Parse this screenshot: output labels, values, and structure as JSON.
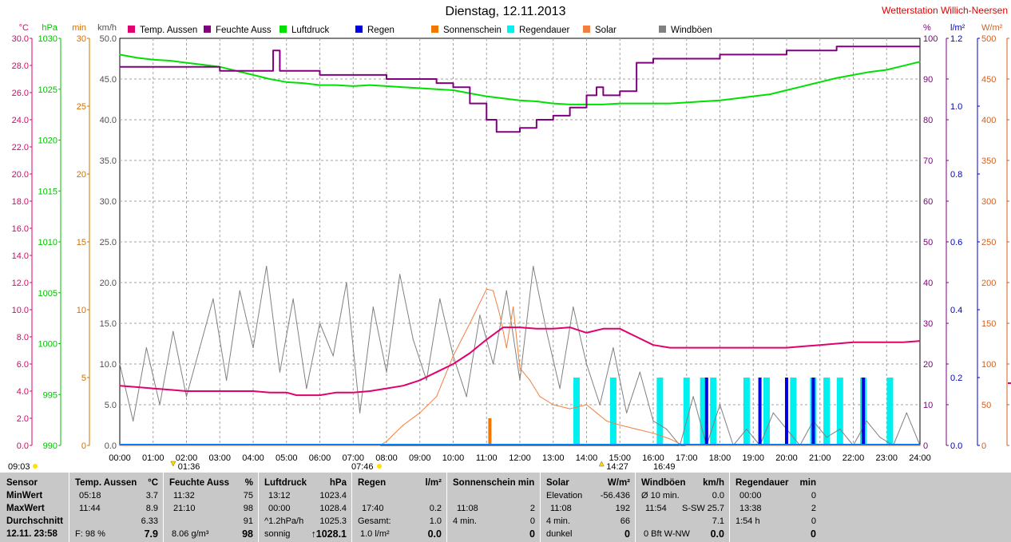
{
  "title": "Dienstag, 12.11.2013",
  "station": "Wetterstation Willich-Neersen",
  "colors": {
    "temp": "#e0006e",
    "humidity": "#800080",
    "pressure": "#00e000",
    "rain": "#0000e0",
    "sunshine": "#f07800",
    "raindur": "#00f0f0",
    "solar": "#f08040",
    "gust": "#808080"
  },
  "legend": [
    {
      "label": "Temp. Aussen",
      "color": "#e0006e"
    },
    {
      "label": "Feuchte Auss",
      "color": "#800080"
    },
    {
      "label": "Luftdruck",
      "color": "#00e000"
    },
    {
      "label": "Regen",
      "color": "#0000e0"
    },
    {
      "label": "Sonnenschein",
      "color": "#f07800"
    },
    {
      "label": "Regendauer",
      "color": "#00f0f0"
    },
    {
      "label": "Solar",
      "color": "#f08040"
    },
    {
      "label": "Windböen",
      "color": "#808080"
    }
  ],
  "axes": {
    "temp": {
      "unit": "°C",
      "ticks": [
        "30.0",
        "28.0",
        "26.0",
        "24.0",
        "22.0",
        "20.0",
        "18.0",
        "16.0",
        "14.0",
        "12.0",
        "10.0",
        "8.0",
        "6.0",
        "4.0",
        "2.0",
        "0.0"
      ],
      "color": "#e0006e"
    },
    "pressure": {
      "unit": "hPa",
      "ticks": [
        "1030",
        "1025",
        "1020",
        "1015",
        "1010",
        "1005",
        "1000",
        "995",
        "990"
      ],
      "color": "#00c000"
    },
    "min": {
      "unit": "min",
      "ticks": [
        "30",
        "25",
        "20",
        "15",
        "10",
        "5",
        "0"
      ],
      "color": "#d07000"
    },
    "kmh": {
      "unit": "km/h",
      "ticks": [
        "50.0",
        "45.0",
        "40.0",
        "35.0",
        "30.0",
        "25.0",
        "20.0",
        "15.0",
        "10.0",
        "5.0",
        "0.0"
      ],
      "color": "#505050"
    },
    "percent": {
      "unit": "%",
      "ticks": [
        "100",
        "90",
        "80",
        "70",
        "60",
        "50",
        "40",
        "30",
        "20",
        "10",
        "0"
      ],
      "color": "#800080"
    },
    "lm2": {
      "unit": "l/m²",
      "ticks": [
        "1.2",
        "1.0",
        "0.8",
        "0.6",
        "0.4",
        "0.2",
        "0.0"
      ],
      "color": "#0000c0"
    },
    "wm2": {
      "unit": "W/m²",
      "ticks": [
        "500",
        "450",
        "400",
        "350",
        "300",
        "250",
        "200",
        "150",
        "100",
        "50",
        "0"
      ],
      "color": "#d06020"
    }
  },
  "x_ticks": [
    "00:00",
    "01:00",
    "02:00",
    "03:00",
    "04:00",
    "05:00",
    "06:00",
    "07:00",
    "08:00",
    "09:00",
    "10:00",
    "11:00",
    "12:00",
    "13:00",
    "14:00",
    "15:00",
    "16:00",
    "17:00",
    "18:00",
    "19:00",
    "20:00",
    "21:00",
    "22:00",
    "23:00",
    "24:00"
  ],
  "markers": {
    "sunshine_start": "09:03",
    "temp_min": "01:36",
    "sunrise": "07:46",
    "temp_max": "14:27",
    "sunset": "16:49"
  },
  "chart_data": {
    "type": "line",
    "x_unit": "hour of day",
    "xlim": [
      0,
      24
    ],
    "series": [
      {
        "name": "Temp. Aussen",
        "unit": "°C",
        "x": [
          0,
          0.5,
          1,
          1.5,
          2,
          2.5,
          3,
          3.5,
          4,
          4.5,
          5,
          5.3,
          5.5,
          6,
          6.5,
          7,
          7.5,
          8,
          8.5,
          9,
          9.5,
          10,
          10.5,
          11,
          11.5,
          12,
          12.5,
          13,
          13.5,
          14,
          14.5,
          15,
          15.5,
          16,
          16.5,
          17,
          18,
          19,
          20,
          20.5,
          21,
          21.5,
          22,
          22.5,
          23,
          23.5,
          24
        ],
        "values": [
          4.4,
          4.3,
          4.2,
          4.1,
          4.0,
          4.0,
          4.0,
          4.0,
          4.0,
          3.9,
          3.9,
          3.7,
          3.7,
          3.7,
          3.9,
          3.9,
          4.0,
          4.2,
          4.4,
          4.8,
          5.4,
          6.0,
          6.8,
          7.8,
          8.7,
          8.7,
          8.6,
          8.6,
          8.7,
          8.3,
          8.6,
          8.6,
          8.0,
          7.4,
          7.2,
          7.2,
          7.2,
          7.2,
          7.2,
          7.3,
          7.4,
          7.5,
          7.6,
          7.6,
          7.6,
          7.6,
          7.7
        ]
      },
      {
        "name": "Feuchte Auss",
        "unit": "%",
        "x": [
          0,
          1,
          2,
          3,
          4,
          4.5,
          4.6,
          4.8,
          5,
          6,
          7,
          8,
          8.5,
          9,
          9.5,
          10,
          10.5,
          11,
          11.3,
          11.5,
          12,
          12.5,
          13,
          13.5,
          14,
          14.3,
          14.5,
          15,
          15.5,
          16,
          17,
          18,
          19,
          20,
          21,
          21.5,
          22,
          23,
          24
        ],
        "values": [
          93,
          93,
          93,
          92,
          92,
          92,
          97,
          92,
          92,
          91,
          91,
          90,
          90,
          90,
          89,
          88,
          84,
          80,
          77,
          77,
          78,
          80,
          81,
          83,
          86,
          88,
          86,
          87,
          94,
          95,
          95,
          96,
          96,
          97,
          97,
          98,
          98,
          98,
          98
        ]
      },
      {
        "name": "Luftdruck",
        "unit": "hPa",
        "x": [
          0,
          0.5,
          1,
          1.5,
          2,
          2.5,
          3,
          3.5,
          4,
          4.5,
          5,
          5.5,
          6,
          6.5,
          7,
          7.5,
          8,
          8.5,
          9,
          9.5,
          10,
          10.5,
          11,
          11.5,
          12,
          12.5,
          13,
          13.5,
          14,
          14.5,
          15,
          15.5,
          16,
          16.5,
          17,
          17.5,
          18,
          18.5,
          19,
          19.5,
          20,
          20.5,
          21,
          21.5,
          22,
          22.5,
          23,
          23.5,
          24
        ],
        "values": [
          1028.4,
          1028.1,
          1027.9,
          1027.8,
          1027.6,
          1027.4,
          1027.2,
          1026.8,
          1026.4,
          1026.0,
          1025.7,
          1025.6,
          1025.4,
          1025.4,
          1025.3,
          1025.4,
          1025.3,
          1025.2,
          1025.1,
          1025.0,
          1024.9,
          1024.6,
          1024.3,
          1024.1,
          1023.9,
          1023.8,
          1023.6,
          1023.5,
          1023.5,
          1023.5,
          1023.6,
          1023.6,
          1023.6,
          1023.6,
          1023.7,
          1023.8,
          1023.9,
          1024.1,
          1024.3,
          1024.5,
          1024.9,
          1025.3,
          1025.7,
          1026.1,
          1026.4,
          1026.7,
          1026.9,
          1027.3,
          1027.7
        ]
      },
      {
        "name": "Windböen",
        "unit": "km/h",
        "x": [
          0,
          0.4,
          0.8,
          1.2,
          1.6,
          2,
          2.4,
          2.8,
          3.2,
          3.6,
          4,
          4.4,
          4.8,
          5.2,
          5.6,
          6,
          6.4,
          6.8,
          7.2,
          7.6,
          8,
          8.4,
          8.8,
          9.2,
          9.6,
          10,
          10.4,
          10.8,
          11.2,
          11.6,
          12,
          12.4,
          12.8,
          13.2,
          13.6,
          14,
          14.4,
          14.8,
          15.2,
          15.6,
          16,
          16.4,
          16.8,
          17.2,
          17.6,
          18,
          18.4,
          18.8,
          19.2,
          19.6,
          20,
          20.4,
          20.8,
          21.2,
          21.6,
          22,
          22.4,
          22.8,
          23.2,
          23.6,
          24
        ],
        "values": [
          10,
          3,
          12,
          5,
          14,
          6,
          12,
          18,
          8,
          19,
          12,
          22,
          9,
          18,
          7,
          15,
          11,
          20,
          4,
          17,
          9,
          21,
          13,
          8,
          18,
          11,
          6,
          16,
          10,
          19,
          8,
          22,
          14,
          7,
          17,
          10,
          5,
          12,
          4,
          9,
          3,
          2,
          0,
          6,
          0,
          5,
          0,
          2,
          0,
          4,
          2,
          0,
          3,
          1,
          2,
          0,
          3,
          1,
          0,
          4,
          0
        ]
      },
      {
        "name": "Solar",
        "unit": "W/m²",
        "x": [
          0,
          7.8,
          8,
          8.5,
          9,
          9.5,
          10,
          10.5,
          11,
          11.2,
          11.4,
          11.6,
          11.8,
          12,
          12.3,
          12.6,
          13,
          13.5,
          14,
          14.3,
          14.6,
          15,
          15.5,
          16,
          16.5,
          16.8,
          17,
          24
        ],
        "values": [
          0,
          0,
          5,
          25,
          40,
          60,
          110,
          150,
          192,
          190,
          160,
          120,
          170,
          95,
          80,
          60,
          50,
          45,
          50,
          40,
          30,
          25,
          20,
          15,
          8,
          2,
          0,
          0
        ]
      },
      {
        "name": "Regen",
        "unit": "l/m²",
        "x": [
          17.6,
          19.2,
          20,
          20.8,
          22.3
        ],
        "values": [
          0.2,
          0.2,
          0.2,
          0.2,
          0.2
        ]
      },
      {
        "name": "Sonnenschein",
        "unit": "min",
        "x": [
          11.1
        ],
        "values": [
          2
        ]
      },
      {
        "name": "Regendauer",
        "unit": "min",
        "x": [
          13.7,
          14.8,
          16.2,
          17.0,
          17.5,
          17.8,
          18.8,
          19.4,
          20.2,
          20.8,
          21.2,
          21.6,
          22.3,
          23.1
        ],
        "values": [
          2,
          2,
          2,
          2,
          2,
          2,
          2,
          2,
          2,
          2,
          2,
          2,
          2,
          2
        ]
      }
    ]
  },
  "table": {
    "sensor": {
      "header": "Sensor",
      "r1": "MinWert",
      "r2": "MaxWert",
      "r3": "Durchschnitt",
      "r4": "12.11. 23:58"
    },
    "temp": {
      "header": "Temp. Aussen",
      "unit": "°C",
      "min_t": "05:18",
      "min_v": "3.7",
      "max_t": "11:44",
      "max_v": "8.9",
      "avg_v": "6.33",
      "f": "F: 98 %",
      "cur": "7.9"
    },
    "hum": {
      "header": "Feuchte Auss",
      "unit": "%",
      "min_t": "11:32",
      "min_v": "75",
      "max_t": "21:10",
      "max_v": "98",
      "avg_v": "91",
      "abs": "8.06 g/m³",
      "cur": "98"
    },
    "press": {
      "header": "Luftdruck",
      "unit": "hPa",
      "min_t": "13:12",
      "min_v": "1023.4",
      "max_t": "00:00",
      "max_v": "1028.4",
      "trend_l": "^1.2hPa/h",
      "trend_v": "1025.3",
      "state": "sonnig",
      "cur": "↑1028.1"
    },
    "rain": {
      "header": "Regen",
      "unit": "l/m²",
      "max_t": "17:40",
      "max_v": "0.2",
      "tot_l": "Gesamt:",
      "tot_v": "1.0",
      "lm2": "1.0 l/m²",
      "cur": "0.0"
    },
    "sun": {
      "header": "Sonnenschein min",
      "max_t": "11:08",
      "max_v": "2",
      "min_l": "4 min.",
      "min_v": "0",
      "cur": "0"
    },
    "solar": {
      "header": "Solar",
      "unit": "W/m²",
      "elev_l": "Elevation",
      "elev_v": "-56.436",
      "max_t": "11:08",
      "max_v": "192",
      "min_l": "4 min.",
      "min_v": "66",
      "state": "dunkel",
      "cur": "0"
    },
    "gust": {
      "header": "Windböen",
      "unit": "km/h",
      "a10_l": "Ø 10 min.",
      "a10_v": "0.0",
      "max_t": "11:54",
      "max_d": "S-SW",
      "max_v": "25.7",
      "avg_v": "7.1",
      "bft": "0 Bft W-NW",
      "cur": "0.0"
    },
    "raind": {
      "header": "Regendauer",
      "unit": "min",
      "min_t": "00:00",
      "min_v": "0",
      "max_t": "13:38",
      "max_v": "2",
      "tot": "1:54 h",
      "tot_v": "0",
      "cur": "0"
    }
  }
}
